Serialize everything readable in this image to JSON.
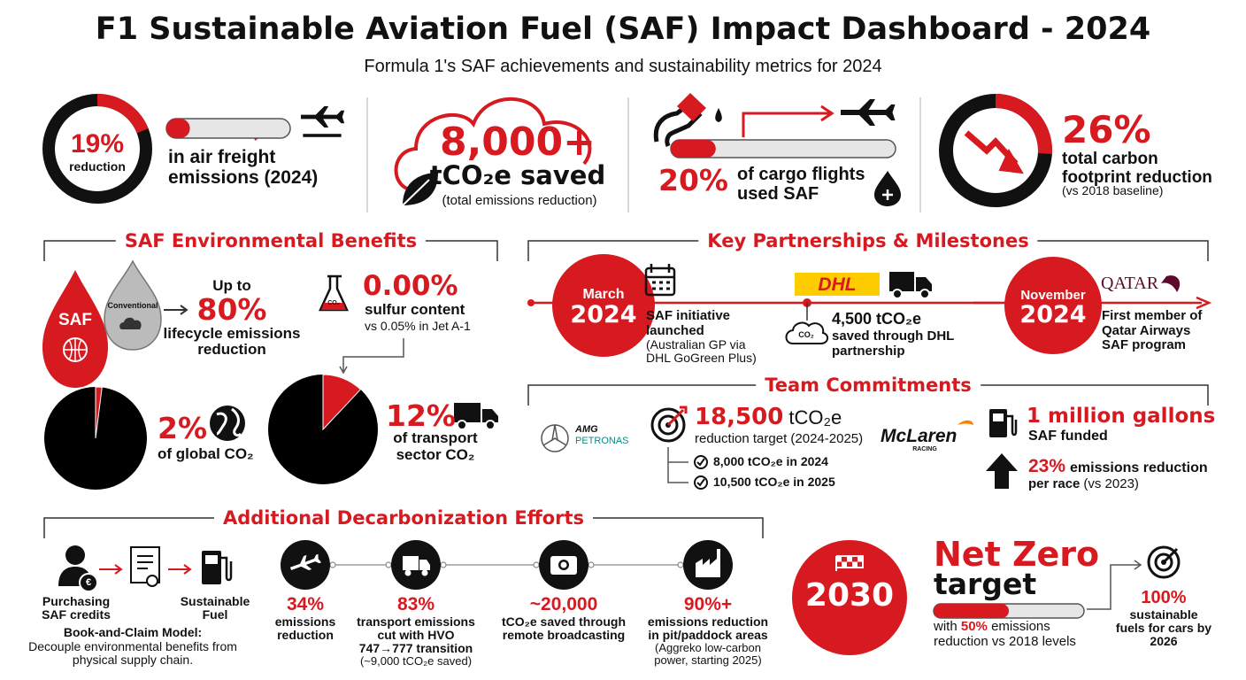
{
  "header": {
    "title": "F1 Sustainable Aviation Fuel (SAF) Impact Dashboard - 2024",
    "subtitle": "Formula 1's SAF achievements and sustainability metrics for 2024"
  },
  "kpis": {
    "air_freight": {
      "value": 19,
      "label": "19%",
      "ring_caption": "reduction",
      "text": "in air freight emissions (2024)"
    },
    "saved": {
      "headline": "8,000+",
      "text": "tCO₂e saved",
      "note": "(total emissions reduction)"
    },
    "cargo": {
      "value": 20,
      "label": "20%",
      "text": "of cargo flights used SAF"
    },
    "footprint": {
      "value": 26,
      "label": "26%",
      "text": "total carbon footprint reduction",
      "note": "(vs 2018 baseline)"
    }
  },
  "benefits": {
    "title": "SAF Environmental Benefits",
    "saf_drop": "SAF",
    "conventional_drop": "Conventional",
    "lifecycle": {
      "prefix": "Up to",
      "headline": "80%",
      "text": "lifecycle emissions reduction"
    },
    "sulfur": {
      "icon": "CO₂",
      "headline": "0.00%",
      "text": "sulfur content",
      "note": "vs 0.05% in Jet A-1"
    },
    "shares": [
      {
        "value": 2,
        "label": "2%",
        "text": "of global CO₂"
      },
      {
        "value": 12,
        "label": "12%",
        "text": "of transport sector CO₂"
      }
    ]
  },
  "partnerships": {
    "title": "Key Partnerships & Milestones",
    "launch": {
      "month": "March",
      "year": "2024",
      "text": "SAF initiative launched",
      "note": "(Australian GP via DHL GoGreen Plus)"
    },
    "dhl": {
      "logo": "DHL",
      "icon": "CO₂",
      "headline": "4,500 tCO₂e",
      "text": "saved through DHL partnership"
    },
    "qatar": {
      "month": "November",
      "year": "2024",
      "logo": "QATAR",
      "text": "First member of Qatar Airways SAF program"
    }
  },
  "team": {
    "title": "Team Commitments",
    "mercedes": {
      "logo_top": "AMG",
      "logo_bottom": "PETRONAS",
      "headline": "18,500",
      "unit": "tCO₂e",
      "text": "reduction target (2024-2025)",
      "items": [
        "8,000 tCO₂e in 2024",
        "10,500 tCO₂e in 2025"
      ]
    },
    "mclaren": {
      "logo_top": "McLaren",
      "logo_bottom": "RACING",
      "headline": "1 million gallons",
      "text": "SAF funded",
      "reduction": "23%",
      "reduction_text": "emissions reduction",
      "per_race": "per race",
      "per_race_note": "(vs 2023)"
    }
  },
  "additional": {
    "title": "Additional Decarbonization Efforts",
    "euro_icon": "€",
    "flow": [
      "Purchasing SAF credits",
      "Sustainable Fuel"
    ],
    "model_title": "Book-and-Claim Model:",
    "model_text": "Decouple environmental benefits from physical supply chain.",
    "steps": [
      {
        "headline": "34%",
        "text": "emissions reduction"
      },
      {
        "headline": "83%",
        "text": "transport emissions cut with HVO 747→777 transition",
        "note": "(~9,000 tCO₂e saved)"
      },
      {
        "headline": "~20,000",
        "text": "tCO₂e saved through remote broadcasting"
      },
      {
        "headline": "90%+",
        "text": "emissions reduction in pit/paddock areas",
        "note": "(Aggreko low-carbon power, starting 2025)"
      }
    ]
  },
  "net_zero": {
    "year": "2030",
    "title": "Net Zero",
    "subtitle": "target",
    "progress": {
      "value": 50,
      "label": "50%"
    },
    "text_before": "with",
    "text_after": "emissions reduction vs 2018 levels",
    "goal": {
      "headline": "100%",
      "text": "sustainable fuels for cars by 2026"
    }
  }
}
